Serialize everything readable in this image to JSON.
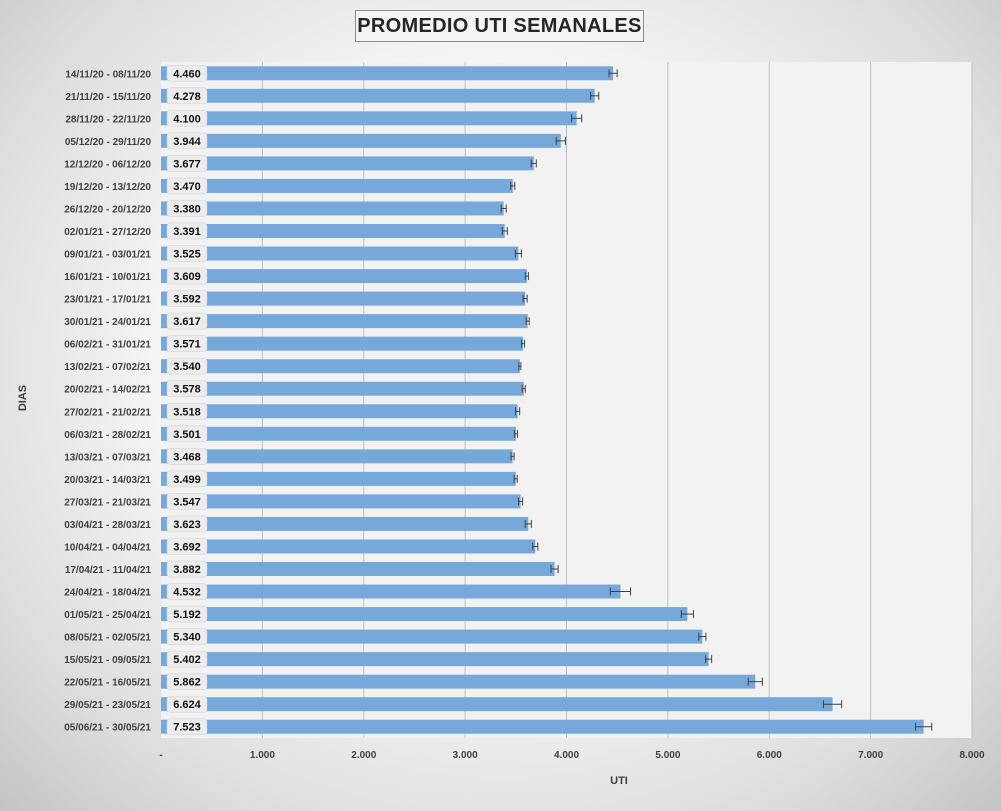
{
  "chart_data": {
    "type": "bar",
    "orientation": "horizontal",
    "title": "PROMEDIO UTI SEMANALES",
    "xlabel": "UTI",
    "ylabel": "DIAS",
    "xlim": [
      0,
      8000
    ],
    "xticks": [
      "-",
      "1.000",
      "2.000",
      "3.000",
      "4.000",
      "5.000",
      "6.000",
      "7.000",
      "8.000"
    ],
    "grid": true,
    "error_bars": true,
    "bar_color": "#76a8da",
    "categories": [
      "14/11/20 - 08/11/20",
      "21/11/20 - 15/11/20",
      "28/11/20 - 22/11/20",
      "05/12/20 - 29/11/20",
      "12/12/20 - 06/12/20",
      "19/12/20 - 13/12/20",
      "26/12/20 - 20/12/20",
      "02/01/21 - 27/12/20",
      "09/01/21 - 03/01/21",
      "16/01/21 - 10/01/21",
      "23/01/21 - 17/01/21",
      "30/01/21 - 24/01/21",
      "06/02/21 - 31/01/21",
      "13/02/21 - 07/02/21",
      "20/02/21 - 14/02/21",
      "27/02/21 - 21/02/21",
      "06/03/21 - 28/02/21",
      "13/03/21 - 07/03/21",
      "20/03/21 - 14/03/21",
      "27/03/21 - 21/03/21",
      "03/04/21 - 28/03/21",
      "10/04/21 - 04/04/21",
      "17/04/21 - 11/04/21",
      "24/04/21 - 18/04/21",
      "01/05/21 - 25/04/21",
      "08/05/21 - 02/05/21",
      "15/05/21 - 09/05/21",
      "22/05/21 - 16/05/21",
      "29/05/21 - 23/05/21",
      "05/06/21 - 30/05/21"
    ],
    "values": [
      4460,
      4278,
      4100,
      3944,
      3677,
      3470,
      3380,
      3391,
      3525,
      3609,
      3592,
      3617,
      3571,
      3540,
      3578,
      3518,
      3501,
      3468,
      3499,
      3547,
      3623,
      3692,
      3882,
      4532,
      5192,
      5340,
      5402,
      5862,
      6624,
      7523
    ],
    "value_labels": [
      "4.460",
      "4.278",
      "4.100",
      "3.944",
      "3.677",
      "3.470",
      "3.380",
      "3.391",
      "3.525",
      "3.609",
      "3.592",
      "3.617",
      "3.571",
      "3.540",
      "3.578",
      "3.518",
      "3.501",
      "3.468",
      "3.499",
      "3.547",
      "3.623",
      "3.692",
      "3.882",
      "4.532",
      "5.192",
      "5.340",
      "5.402",
      "5.862",
      "6.624",
      "7.523"
    ],
    "errors": [
      40,
      40,
      50,
      45,
      25,
      20,
      25,
      25,
      30,
      15,
      20,
      15,
      15,
      10,
      15,
      20,
      15,
      15,
      15,
      20,
      30,
      25,
      35,
      100,
      60,
      35,
      30,
      70,
      90,
      80
    ]
  }
}
